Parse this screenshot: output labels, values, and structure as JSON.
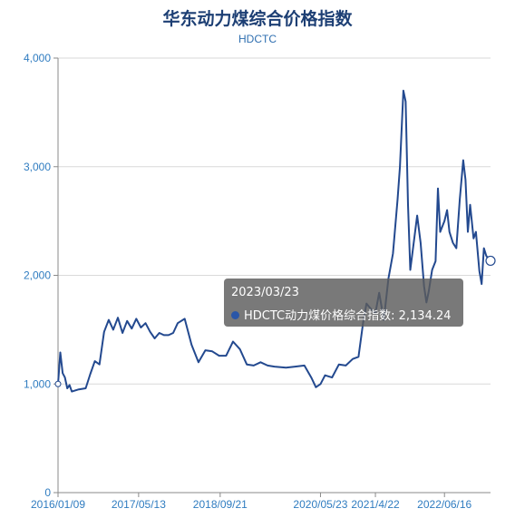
{
  "chart_data": {
    "type": "line",
    "title": "华东动力煤综合价格指数",
    "subtitle": "HDCTC",
    "xlabel": "",
    "ylabel": "",
    "ylim": [
      0,
      4000
    ],
    "y_ticks": [
      0,
      1000,
      2000,
      3000,
      4000
    ],
    "y_tick_labels": [
      "0",
      "1,000",
      "2,000",
      "3,000",
      "4,000"
    ],
    "x_tick_labels": [
      "2016/01/09",
      "2017/05/13",
      "2018/09/21",
      "2020/05/23",
      "2021/4/22",
      "2022/06/16"
    ],
    "x_tick_dates": [
      "2016-01-09",
      "2017-05-13",
      "2018-09-21",
      "2020-05-23",
      "2021-04-22",
      "2022-06-16"
    ],
    "x_range": [
      "2016-01-09",
      "2023-03-23"
    ],
    "grid": "horizontal",
    "line_color": "#23498f",
    "series": [
      {
        "points": [
          [
            "2016-01-09",
            1000
          ],
          [
            "2016-01-23",
            1290
          ],
          [
            "2016-02-06",
            1100
          ],
          [
            "2016-02-20",
            1060
          ],
          [
            "2016-03-05",
            960
          ],
          [
            "2016-03-19",
            990
          ],
          [
            "2016-04-02",
            930
          ],
          [
            "2016-05-14",
            950
          ],
          [
            "2016-06-25",
            960
          ],
          [
            "2016-07-23",
            1090
          ],
          [
            "2016-08-20",
            1210
          ],
          [
            "2016-09-17",
            1180
          ],
          [
            "2016-10-15",
            1480
          ],
          [
            "2016-11-12",
            1590
          ],
          [
            "2016-12-10",
            1500
          ],
          [
            "2017-01-07",
            1610
          ],
          [
            "2017-02-04",
            1470
          ],
          [
            "2017-03-04",
            1580
          ],
          [
            "2017-04-01",
            1510
          ],
          [
            "2017-04-29",
            1600
          ],
          [
            "2017-05-27",
            1520
          ],
          [
            "2017-06-24",
            1560
          ],
          [
            "2017-07-22",
            1480
          ],
          [
            "2017-08-19",
            1420
          ],
          [
            "2017-09-16",
            1470
          ],
          [
            "2017-10-14",
            1450
          ],
          [
            "2017-11-11",
            1450
          ],
          [
            "2017-12-09",
            1470
          ],
          [
            "2018-01-06",
            1560
          ],
          [
            "2018-02-17",
            1600
          ],
          [
            "2018-03-31",
            1360
          ],
          [
            "2018-05-12",
            1200
          ],
          [
            "2018-06-23",
            1310
          ],
          [
            "2018-08-04",
            1300
          ],
          [
            "2018-09-15",
            1260
          ],
          [
            "2018-10-27",
            1260
          ],
          [
            "2018-12-08",
            1390
          ],
          [
            "2019-01-19",
            1320
          ],
          [
            "2019-03-02",
            1180
          ],
          [
            "2019-04-13",
            1170
          ],
          [
            "2019-05-25",
            1200
          ],
          [
            "2019-07-06",
            1170
          ],
          [
            "2019-08-17",
            1160
          ],
          [
            "2019-10-26",
            1150
          ],
          [
            "2019-12-21",
            1160
          ],
          [
            "2020-02-15",
            1170
          ],
          [
            "2020-03-28",
            1060
          ],
          [
            "2020-04-25",
            970
          ],
          [
            "2020-05-23",
            1000
          ],
          [
            "2020-06-20",
            1080
          ],
          [
            "2020-08-01",
            1060
          ],
          [
            "2020-09-12",
            1180
          ],
          [
            "2020-10-24",
            1170
          ],
          [
            "2020-12-05",
            1230
          ],
          [
            "2021-01-09",
            1250
          ],
          [
            "2021-02-06",
            1560
          ],
          [
            "2021-02-27",
            1740
          ],
          [
            "2021-03-20",
            1700
          ],
          [
            "2021-04-22",
            1650
          ],
          [
            "2021-05-15",
            1840
          ],
          [
            "2021-06-12",
            1590
          ],
          [
            "2021-07-10",
            1970
          ],
          [
            "2021-08-07",
            2200
          ],
          [
            "2021-09-04",
            2700
          ],
          [
            "2021-09-18",
            3000
          ],
          [
            "2021-10-09",
            3700
          ],
          [
            "2021-10-23",
            3600
          ],
          [
            "2021-11-06",
            2650
          ],
          [
            "2021-11-20",
            2050
          ],
          [
            "2021-12-11",
            2300
          ],
          [
            "2022-01-01",
            2550
          ],
          [
            "2022-01-22",
            2300
          ],
          [
            "2022-02-12",
            1900
          ],
          [
            "2022-02-26",
            1750
          ],
          [
            "2022-03-12",
            1850
          ],
          [
            "2022-04-02",
            2050
          ],
          [
            "2022-04-23",
            2130
          ],
          [
            "2022-05-07",
            2800
          ],
          [
            "2022-05-21",
            2400
          ],
          [
            "2022-06-16",
            2500
          ],
          [
            "2022-07-02",
            2600
          ],
          [
            "2022-07-16",
            2400
          ],
          [
            "2022-08-06",
            2300
          ],
          [
            "2022-08-27",
            2250
          ],
          [
            "2022-09-17",
            2700
          ],
          [
            "2022-10-08",
            3060
          ],
          [
            "2022-10-22",
            2880
          ],
          [
            "2022-11-05",
            2400
          ],
          [
            "2022-11-19",
            2650
          ],
          [
            "2022-12-10",
            2340
          ],
          [
            "2022-12-24",
            2400
          ],
          [
            "2023-01-14",
            2040
          ],
          [
            "2023-01-28",
            1920
          ],
          [
            "2023-02-11",
            2250
          ],
          [
            "2023-02-25",
            2180
          ],
          [
            "2023-03-11",
            2150
          ],
          [
            "2023-03-23",
            2134.24
          ]
        ]
      }
    ],
    "highlight": {
      "date": "2023-03-23",
      "value": 2134.24
    }
  },
  "tooltip": {
    "date": "2023/03/23",
    "label": "HDCTC动力煤价格综合指数: 2,134.24"
  }
}
